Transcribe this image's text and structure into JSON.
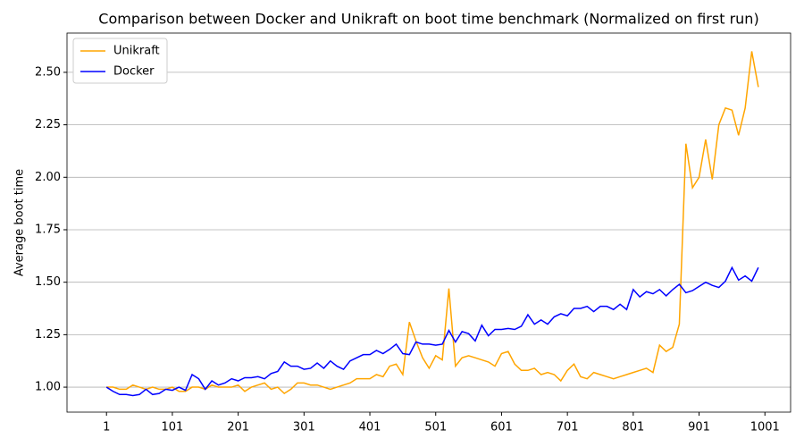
{
  "chart_data": {
    "type": "line",
    "title": "Comparison between Docker and Unikraft on boot time benchmark (Normalized on first run)",
    "ylabel": "Average boot time",
    "x": [
      1,
      11,
      21,
      31,
      41,
      51,
      61,
      71,
      81,
      91,
      101,
      111,
      121,
      131,
      141,
      151,
      161,
      171,
      181,
      191,
      201,
      211,
      221,
      231,
      241,
      251,
      261,
      271,
      281,
      291,
      301,
      311,
      321,
      331,
      341,
      351,
      361,
      371,
      381,
      391,
      401,
      411,
      421,
      431,
      441,
      451,
      461,
      471,
      481,
      491,
      501,
      511,
      521,
      531,
      541,
      551,
      561,
      571,
      581,
      591,
      601,
      611,
      621,
      631,
      641,
      651,
      661,
      671,
      681,
      691,
      701,
      711,
      721,
      731,
      741,
      751,
      761,
      771,
      781,
      791,
      801,
      811,
      821,
      831,
      841,
      851,
      861,
      871,
      881,
      891,
      901,
      911,
      921,
      931,
      941,
      951,
      961,
      971,
      981,
      991
    ],
    "series": [
      {
        "name": "Unikraft",
        "color": "#ffa500",
        "values": [
          1.0,
          1.0,
          0.99,
          0.99,
          1.01,
          1.0,
          0.99,
          1.0,
          0.99,
          0.99,
          1.0,
          0.98,
          0.98,
          1.0,
          1.0,
          0.99,
          1.01,
          1.0,
          1.0,
          1.0,
          1.01,
          0.98,
          1.0,
          1.01,
          1.02,
          0.99,
          1.0,
          0.97,
          0.99,
          1.02,
          1.02,
          1.01,
          1.01,
          1.0,
          0.99,
          1.0,
          1.01,
          1.02,
          1.04,
          1.04,
          1.04,
          1.06,
          1.05,
          1.1,
          1.11,
          1.06,
          1.31,
          1.22,
          1.14,
          1.09,
          1.15,
          1.13,
          1.47,
          1.1,
          1.14,
          1.15,
          1.14,
          1.13,
          1.12,
          1.1,
          1.16,
          1.17,
          1.11,
          1.08,
          1.08,
          1.09,
          1.06,
          1.07,
          1.06,
          1.03,
          1.08,
          1.11,
          1.05,
          1.04,
          1.07,
          1.06,
          1.05,
          1.04,
          1.05,
          1.06,
          1.07,
          1.08,
          1.09,
          1.07,
          1.2,
          1.17,
          1.19,
          1.3,
          2.16,
          1.95,
          2.0,
          2.18,
          1.99,
          2.25,
          2.33,
          2.32,
          2.2,
          2.33,
          2.6,
          2.43
        ]
      },
      {
        "name": "Docker",
        "color": "#0000ff",
        "values": [
          1.0,
          0.98,
          0.965,
          0.965,
          0.96,
          0.965,
          0.99,
          0.965,
          0.97,
          0.99,
          0.985,
          1.0,
          0.985,
          1.06,
          1.04,
          0.99,
          1.03,
          1.01,
          1.02,
          1.04,
          1.03,
          1.045,
          1.045,
          1.05,
          1.04,
          1.065,
          1.075,
          1.12,
          1.1,
          1.1,
          1.085,
          1.09,
          1.115,
          1.09,
          1.125,
          1.1,
          1.085,
          1.125,
          1.14,
          1.155,
          1.155,
          1.175,
          1.16,
          1.18,
          1.205,
          1.16,
          1.155,
          1.215,
          1.205,
          1.205,
          1.2,
          1.205,
          1.27,
          1.215,
          1.265,
          1.255,
          1.22,
          1.295,
          1.245,
          1.275,
          1.275,
          1.28,
          1.275,
          1.29,
          1.345,
          1.3,
          1.32,
          1.3,
          1.335,
          1.35,
          1.34,
          1.375,
          1.375,
          1.385,
          1.36,
          1.385,
          1.385,
          1.37,
          1.395,
          1.37,
          1.465,
          1.43,
          1.455,
          1.445,
          1.465,
          1.435,
          1.465,
          1.49,
          1.45,
          1.46,
          1.48,
          1.5,
          1.485,
          1.475,
          1.505,
          1.57,
          1.51,
          1.53,
          1.505,
          1.57
        ]
      }
    ],
    "xlim": [
      -59,
      1040
    ],
    "ylim": [
      0.881,
      2.687
    ],
    "xticks": [
      1,
      101,
      201,
      301,
      401,
      501,
      601,
      701,
      801,
      901,
      1001
    ],
    "yticks": [
      {
        "value": 1.0,
        "label": "1.00"
      },
      {
        "value": 1.25,
        "label": "1.25"
      },
      {
        "value": 1.5,
        "label": "1.50"
      },
      {
        "value": 1.75,
        "label": "1.75"
      },
      {
        "value": 2.0,
        "label": "2.00"
      },
      {
        "value": 2.25,
        "label": "2.25"
      },
      {
        "value": 2.5,
        "label": "2.50"
      }
    ],
    "grid": "y",
    "legend": "upper-left"
  }
}
